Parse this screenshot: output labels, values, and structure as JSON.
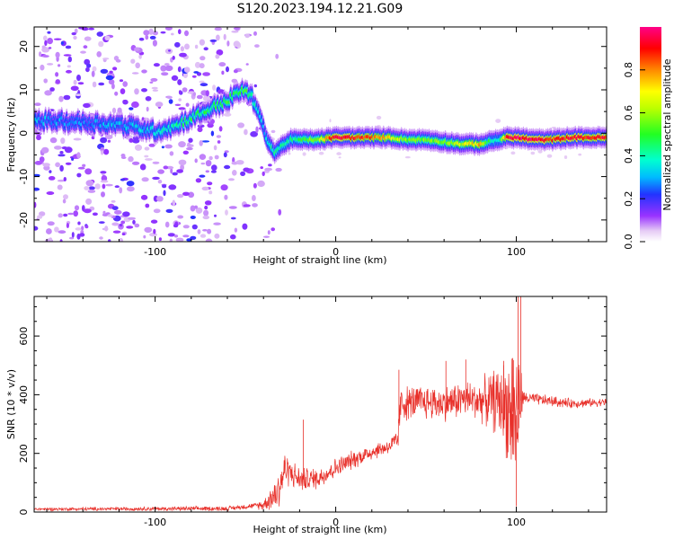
{
  "title": "S120.2023.194.12.21.G09",
  "chart_data": [
    {
      "type": "heatmap",
      "name": "spectrogram",
      "xlabel": "Height of straight line (km)",
      "ylabel": "Frequency (Hz)",
      "xlim": [
        -167,
        150
      ],
      "ylim": [
        -25,
        24.5
      ],
      "x_ticks": [
        -100,
        0,
        100
      ],
      "y_ticks": [
        -20,
        -10,
        0,
        10,
        20
      ],
      "colorbar": {
        "label": "Normalized spectral amplitude",
        "range": [
          0,
          1
        ],
        "ticks": [
          "0.0",
          "0.2",
          "0.4",
          "0.6",
          "0.8"
        ],
        "tick_values": [
          0,
          0.2,
          0.4,
          0.6,
          0.8
        ]
      },
      "ridge": {
        "x": [
          -167,
          -140,
          -120,
          -100,
          -90,
          -80,
          -70,
          -60,
          -55,
          -50,
          -46,
          -42,
          -38,
          -34,
          -30,
          -25,
          -20,
          -10,
          0,
          10,
          20,
          30,
          40,
          50,
          60,
          70,
          80,
          85,
          90,
          95,
          100,
          110,
          120,
          130,
          140,
          150
        ],
        "y": [
          3,
          2.5,
          2,
          0.5,
          1.5,
          3.5,
          5.5,
          7.5,
          9,
          10,
          8,
          4,
          -1.5,
          -4.5,
          -3,
          -1.5,
          -1.5,
          -1.5,
          -1,
          -1,
          -1,
          -1,
          -1.5,
          -1.5,
          -2,
          -2.5,
          -2.5,
          -2,
          -1.5,
          -1,
          -1,
          -1.5,
          -1.5,
          -1,
          -1,
          -1
        ],
        "amplitude": [
          0.28,
          0.28,
          0.3,
          0.35,
          0.4,
          0.45,
          0.45,
          0.5,
          0.5,
          0.5,
          0.4,
          0.3,
          0.35,
          0.4,
          0.4,
          0.45,
          0.45,
          0.6,
          0.95,
          0.9,
          0.85,
          0.7,
          0.55,
          0.55,
          0.55,
          0.65,
          0.75,
          0.45,
          0.35,
          0.95,
          0.95,
          0.95,
          0.85,
          0.9,
          0.9,
          0.9
        ]
      },
      "noise_region_x": [
        -167,
        -45
      ]
    },
    {
      "type": "line",
      "name": "snr",
      "xlabel": "Height of straight line (km)",
      "ylabel": "SNR (10 * v/v)",
      "xlim": [
        -167,
        150
      ],
      "ylim": [
        0,
        735
      ],
      "x_ticks": [
        -100,
        0,
        100
      ],
      "y_ticks": [
        0,
        200,
        400,
        600
      ],
      "color": "#e8302a",
      "trend": {
        "x": [
          -167,
          -60,
          -40,
          -32,
          -28,
          -20,
          -10,
          0,
          10,
          20,
          30,
          34,
          36,
          50,
          60,
          70,
          80,
          90,
          95,
          100,
          103,
          110,
          130,
          150
        ],
        "y": [
          10,
          12,
          25,
          70,
          150,
          110,
          115,
          150,
          180,
          205,
          225,
          235,
          370,
          375,
          370,
          385,
          380,
          380,
          360,
          330,
          390,
          385,
          370,
          375
        ]
      },
      "noise_amplitude": {
        "x": [
          -167,
          -45,
          -38,
          -32,
          -25,
          -15,
          0,
          30,
          35,
          60,
          80,
          92,
          100,
          104,
          150
        ],
        "y": [
          6,
          10,
          30,
          90,
          55,
          45,
          40,
          30,
          70,
          70,
          80,
          150,
          320,
          25,
          15
        ]
      },
      "spikes": [
        {
          "x": -18,
          "y": 315
        },
        {
          "x": 35,
          "y": 485
        },
        {
          "x": 61,
          "y": 515
        },
        {
          "x": 72,
          "y": 520
        },
        {
          "x": 93,
          "y": 515
        },
        {
          "x": 98,
          "y": 525
        },
        {
          "x": 101,
          "y": 735
        },
        {
          "x": 102.5,
          "y": 735
        },
        {
          "x": 100,
          "y": 20
        }
      ]
    }
  ]
}
